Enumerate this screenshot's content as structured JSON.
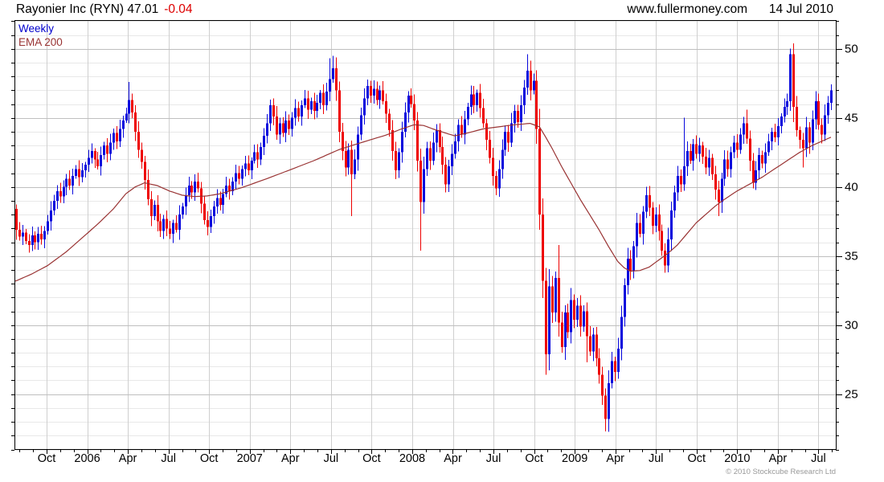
{
  "header": {
    "title": "Rayonier Inc (RYN) 47.01",
    "change": "-0.04",
    "site": "www.fullermoney.com",
    "date": "14 Jul 2010"
  },
  "legend": {
    "series": "Weekly",
    "overlay": "EMA 200"
  },
  "footer": {
    "copyright": "© 2010 Stockcube Research Ltd"
  },
  "colors": {
    "up": "#0808dd",
    "down": "#ee0000",
    "ema": "#993333",
    "grid_major": "#bfbfbf",
    "grid_minor": "#e8e8e8",
    "grid_vert": "#cfcfcf",
    "frame": "#000000",
    "axis_text": "#000000"
  },
  "chart_data": {
    "type": "candlestick",
    "title": "Rayonier Inc (RYN)",
    "interval": "Weekly",
    "overlay": "EMA 200",
    "last_price": 47.01,
    "change": -0.04,
    "x_labels": [
      "Oct",
      "2006",
      "Apr",
      "Jul",
      "Oct",
      "2007",
      "Apr",
      "Jul",
      "Oct",
      "2008",
      "Apr",
      "Jul",
      "Oct",
      "2009",
      "Apr",
      "Jul",
      "Oct",
      "2010",
      "Apr",
      "Jul"
    ],
    "y_ticks": [
      25,
      30,
      35,
      40,
      45,
      50
    ],
    "y_minor_step": 1,
    "y_range": [
      21,
      52.1
    ],
    "grid": true,
    "legend_position": "top-left",
    "first_open": 38.4,
    "weekly_closes": [
      36.9,
      36.4,
      36.7,
      36.1,
      35.8,
      36.5,
      36.0,
      36.6,
      36.2,
      36.8,
      37.5,
      38.3,
      39.0,
      39.7,
      39.3,
      40.0,
      40.6,
      40.1,
      40.8,
      41.3,
      40.7,
      41.2,
      41.6,
      42.1,
      42.6,
      42.0,
      41.5,
      42.3,
      43.0,
      42.4,
      43.2,
      43.9,
      43.3,
      44.2,
      44.8,
      45.3,
      46.3,
      45.4,
      44.0,
      42.7,
      41.8,
      40.5,
      39.1,
      37.9,
      38.7,
      37.5,
      36.8,
      37.7,
      37.0,
      36.6,
      37.4,
      36.9,
      38.0,
      38.6,
      39.4,
      40.1,
      39.6,
      40.4,
      39.9,
      38.8,
      37.6,
      37.1,
      37.9,
      38.6,
      39.2,
      38.7,
      39.5,
      40.1,
      39.7,
      40.4,
      41.0,
      40.6,
      41.3,
      41.7,
      41.2,
      41.9,
      42.5,
      42.0,
      42.9,
      43.7,
      44.6,
      45.9,
      45.1,
      43.8,
      44.6,
      43.9,
      44.8,
      44.2,
      45.0,
      45.7,
      45.1,
      45.9,
      46.4,
      45.6,
      46.2,
      45.5,
      46.1,
      46.8,
      45.9,
      46.9,
      47.8,
      48.6,
      47.0,
      44.0,
      42.6,
      41.4,
      42.7,
      40.9,
      42.0,
      43.8,
      45.2,
      46.4,
      47.3,
      46.6,
      47.1,
      46.3,
      47.0,
      46.2,
      45.3,
      44.1,
      42.6,
      41.2,
      42.5,
      44.0,
      45.4,
      46.6,
      46.0,
      44.8,
      41.9,
      38.9,
      41.3,
      42.8,
      41.9,
      43.2,
      44.1,
      42.9,
      41.6,
      40.2,
      41.5,
      42.4,
      43.3,
      44.5,
      43.8,
      44.9,
      45.8,
      46.7,
      45.9,
      46.8,
      45.7,
      44.6,
      43.4,
      42.1,
      40.8,
      39.9,
      41.3,
      42.7,
      44.0,
      43.2,
      44.6,
      45.5,
      44.7,
      45.9,
      47.2,
      48.4,
      47.0,
      47.7,
      44.2,
      38.0,
      33.2,
      27.9,
      32.8,
      30.9,
      33.4,
      30.2,
      28.4,
      30.9,
      29.5,
      31.8,
      30.4,
      31.4,
      29.9,
      31.0,
      29.2,
      28.1,
      29.3,
      27.6,
      26.4,
      24.9,
      23.2,
      25.8,
      27.4,
      26.6,
      28.3,
      30.6,
      32.9,
      34.8,
      33.9,
      35.7,
      37.4,
      36.6,
      38.2,
      39.4,
      38.5,
      37.2,
      38.0,
      36.8,
      35.4,
      34.3,
      36.2,
      38.3,
      39.6,
      40.8,
      40.2,
      41.5,
      42.6,
      41.9,
      43.1,
      42.4,
      43.0,
      42.2,
      41.4,
      42.1,
      40.9,
      39.8,
      38.9,
      40.6,
      42.0,
      41.3,
      42.5,
      43.2,
      42.7,
      43.8,
      44.6,
      43.5,
      41.9,
      40.3,
      41.2,
      42.3,
      41.7,
      42.5,
      43.3,
      44.0,
      43.6,
      44.4,
      45.1,
      45.8,
      46.2,
      49.6,
      45.8,
      44.1,
      43.4,
      42.8,
      44.3,
      43.2,
      44.9,
      46.2,
      44.5,
      43.8,
      45.2,
      46.1,
      47.0
    ],
    "extreme_overrides": {
      "36": [
        47.6,
        null
      ],
      "100": [
        49.3,
        null
      ],
      "101": [
        49.5,
        null
      ],
      "107": [
        null,
        37.9
      ],
      "129": [
        null,
        35.4
      ],
      "146": [
        47.3,
        null
      ],
      "163": [
        49.6,
        null
      ],
      "169": [
        null,
        26.4
      ],
      "173": [
        35.8,
        null
      ],
      "182": [
        null,
        27.3
      ],
      "188": [
        null,
        22.3
      ],
      "207": [
        null,
        33.8
      ],
      "213": [
        45.0,
        null
      ],
      "224": [
        null,
        37.9
      ],
      "233": [
        45.6,
        null
      ],
      "235": [
        null,
        39.9
      ],
      "247": [
        50.0,
        null
      ],
      "248": [
        50.4,
        null
      ],
      "251": [
        null,
        41.4
      ],
      "253": [
        null,
        42.4
      ]
    },
    "ema_anchors": [
      [
        0,
        33.2
      ],
      [
        5,
        33.7
      ],
      [
        10,
        34.3
      ],
      [
        16,
        35.3
      ],
      [
        21,
        36.3
      ],
      [
        26,
        37.3
      ],
      [
        31,
        38.4
      ],
      [
        35,
        39.5
      ],
      [
        38,
        40.0
      ],
      [
        41,
        40.3
      ],
      [
        45,
        40.1
      ],
      [
        49,
        39.7
      ],
      [
        53,
        39.4
      ],
      [
        57,
        39.3
      ],
      [
        61,
        39.35
      ],
      [
        65,
        39.5
      ],
      [
        72,
        39.95
      ],
      [
        80,
        40.6
      ],
      [
        87,
        41.2
      ],
      [
        95,
        41.9
      ],
      [
        103,
        42.7
      ],
      [
        110,
        43.2
      ],
      [
        118,
        43.75
      ],
      [
        123,
        44.2
      ],
      [
        127,
        44.5
      ],
      [
        130,
        44.45
      ],
      [
        133,
        44.2
      ],
      [
        137,
        43.9
      ],
      [
        140,
        43.7
      ],
      [
        144,
        43.9
      ],
      [
        149,
        44.2
      ],
      [
        154,
        44.35
      ],
      [
        159,
        44.5
      ],
      [
        164,
        44.6
      ],
      [
        167,
        44.35
      ],
      [
        169,
        43.6
      ],
      [
        171,
        42.8
      ],
      [
        174,
        41.5
      ],
      [
        177,
        40.3
      ],
      [
        180,
        39.1
      ],
      [
        183,
        38.0
      ],
      [
        186,
        36.9
      ],
      [
        189,
        35.7
      ],
      [
        192,
        34.6
      ],
      [
        194,
        34.15
      ],
      [
        196,
        33.9
      ],
      [
        199,
        33.95
      ],
      [
        202,
        34.2
      ],
      [
        205,
        34.7
      ],
      [
        208,
        35.2
      ],
      [
        211,
        35.8
      ],
      [
        214,
        36.6
      ],
      [
        217,
        37.4
      ],
      [
        220,
        38.0
      ],
      [
        223,
        38.6
      ],
      [
        226,
        39.1
      ],
      [
        230,
        39.7
      ],
      [
        234,
        40.2
      ],
      [
        238,
        40.7
      ],
      [
        242,
        41.3
      ],
      [
        246,
        41.9
      ],
      [
        250,
        42.5
      ],
      [
        254,
        43.0
      ],
      [
        257,
        43.3
      ],
      [
        260,
        43.6
      ]
    ]
  }
}
